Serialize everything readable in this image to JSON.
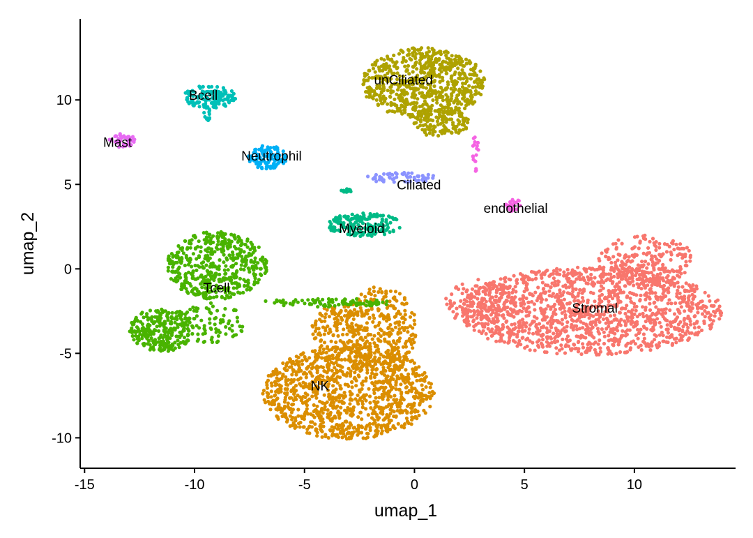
{
  "chart_data": {
    "type": "scatter",
    "title": "",
    "xlabel": "umap_1",
    "ylabel": "umap_2",
    "xlim": [
      -15.2,
      14.6
    ],
    "ylim": [
      -11.8,
      14.8
    ],
    "xticks": [
      -15,
      -10,
      -5,
      0,
      5,
      10
    ],
    "yticks": [
      -10,
      -5,
      0,
      5,
      10
    ],
    "grid": false,
    "legend": "none",
    "clusters": [
      {
        "name": "Stromal",
        "color": "#F8766D",
        "label_x": 8.2,
        "label_y": -2.3
      },
      {
        "name": "NK",
        "color": "#DB8E00",
        "label_x": -4.3,
        "label_y": -6.9
      },
      {
        "name": "unCiliated",
        "color": "#AEA200",
        "label_x": -0.5,
        "label_y": 11.2
      },
      {
        "name": "Tcell",
        "color": "#49B300",
        "label_x": -9.0,
        "label_y": -1.1
      },
      {
        "name": "Myeloid",
        "color": "#00BA86",
        "label_x": -2.4,
        "label_y": 2.4
      },
      {
        "name": "Bcell",
        "color": "#00C0B8",
        "label_x": -9.6,
        "label_y": 10.3
      },
      {
        "name": "Neutrophil",
        "color": "#00B0F6",
        "label_x": -6.5,
        "label_y": 6.7
      },
      {
        "name": "Ciliated",
        "color": "#8B93FF",
        "label_x": 0.2,
        "label_y": 5.0
      },
      {
        "name": "endothelial",
        "color": "#F564E3",
        "label_x": 4.6,
        "label_y": 3.6
      },
      {
        "name": "Mast",
        "color": "#E76BF3",
        "label_x": -13.5,
        "label_y": 7.5
      }
    ]
  }
}
